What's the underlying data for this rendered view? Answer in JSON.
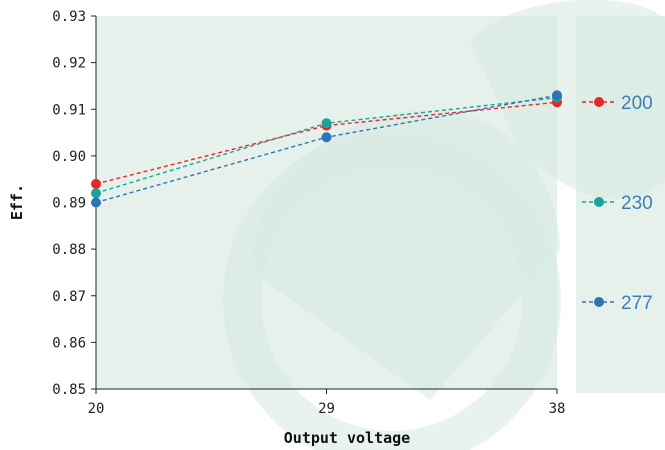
{
  "chart_data": {
    "type": "line",
    "title": "",
    "xlabel": "Output voltage",
    "ylabel": "Eff.",
    "x": [
      20,
      29,
      38
    ],
    "x_tick_labels": [
      "20",
      "29",
      "38"
    ],
    "ylim": [
      0.85,
      0.93
    ],
    "y_tick_labels": [
      "0.93",
      "0.92",
      "0.91",
      "0.90",
      "0.89",
      "0.88",
      "0.87",
      "0.86",
      "0.85"
    ],
    "y_ticks": [
      0.93,
      0.92,
      0.91,
      0.9,
      0.89,
      0.88,
      0.87,
      0.86,
      0.85
    ],
    "grid": false,
    "legend_position": "right",
    "series": [
      {
        "name": "200",
        "values": [
          0.894,
          0.9065,
          0.9115
        ],
        "color": "#e8262a"
      },
      {
        "name": "230",
        "values": [
          0.892,
          0.907,
          0.9125
        ],
        "color": "#1ba39a"
      },
      {
        "name": "277",
        "values": [
          0.89,
          0.904,
          0.913
        ],
        "color": "#2e74b5"
      }
    ],
    "plot_background": "#e6f1ec",
    "watermark_color": "#d5e9e0"
  }
}
